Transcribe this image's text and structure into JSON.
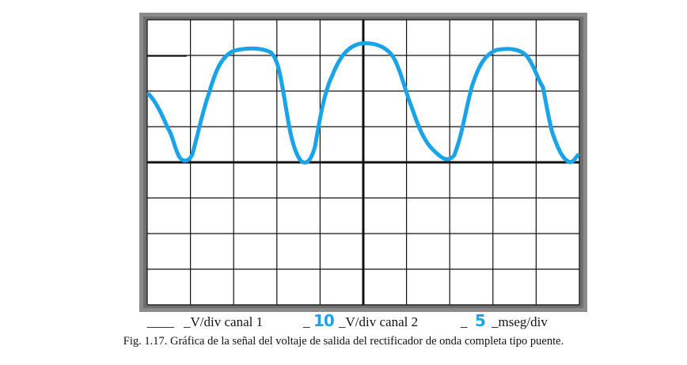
{
  "oscilloscope": {
    "trace_color": "#1aa3e8",
    "frame_color": "#8a8a8a",
    "grid_color": "#111111"
  },
  "settings": {
    "ch1_blank": "____",
    "ch1_unit": "_V/div canal 1",
    "ch2_blank_left": "_",
    "ch2_value": "10",
    "ch2_unit": "_V/div canal 2",
    "time_blank_left": "_",
    "time_value": "5",
    "time_unit": "_mseg/div"
  },
  "caption": "Fig. 1.17. Gráfica de la señal del voltaje de salida del rectificador de onda completa tipo puente."
}
